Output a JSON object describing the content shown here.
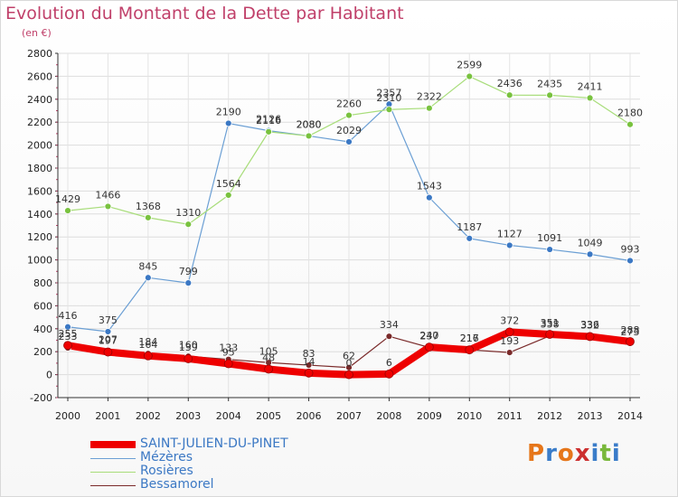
{
  "header": {
    "title": "Evolution du Montant de la Dette par Habitant",
    "unit": "(en €)"
  },
  "logo": {
    "text": "Proxiti",
    "chars": [
      "P",
      "r",
      "o",
      "x",
      "i",
      "t",
      "i"
    ],
    "colors": [
      "#e6761a",
      "#3a7cc9",
      "#e6761a",
      "#cc2f2f",
      "#3a7cc9",
      "#79b83b",
      "#3a7cc9"
    ]
  },
  "chart_data": {
    "type": "line",
    "x": [
      "2000",
      "2001",
      "2002",
      "2003",
      "2004",
      "2005",
      "2006",
      "2007",
      "2008",
      "2009",
      "2010",
      "2011",
      "2012",
      "2013",
      "2014"
    ],
    "ylim": [
      -200,
      2800
    ],
    "yticks": [
      -200,
      0,
      200,
      400,
      600,
      800,
      1000,
      1200,
      1400,
      1600,
      1800,
      2000,
      2200,
      2400,
      2600,
      2800
    ],
    "grid": true,
    "legend_position": "bottom-left",
    "series": [
      {
        "name": "Mézères",
        "color": "#6b9fd4",
        "marker": "#3b78c4",
        "width": 1.2,
        "values": [
          416,
          375,
          845,
          799,
          2190,
          2126,
          2080,
          2029,
          2357,
          1543,
          1187,
          1127,
          1091,
          1049,
          993
        ]
      },
      {
        "name": "Rosières",
        "color": "#a8dd7a",
        "marker": "#79c23f",
        "width": 1.2,
        "values": [
          1429,
          1466,
          1368,
          1310,
          1564,
          2116,
          2080,
          2260,
          2310,
          2322,
          2599,
          2436,
          2435,
          2411,
          2180
        ]
      },
      {
        "name": "Bessamorel",
        "color": "#7a2a2a",
        "marker": "#7a2a2a",
        "width": 1.2,
        "values": [
          233,
          207,
          184,
          160,
          133,
          105,
          83,
          62,
          334,
          237,
          217,
          193,
          338,
          336,
          273
        ]
      },
      {
        "name": "SAINT-JULIEN-DU-PINET",
        "color": "#ee0000",
        "marker": "#ee0000",
        "width": 8,
        "values": [
          255,
          197,
          164,
          139,
          95,
          48,
          14,
          0,
          6,
          240,
          216,
          372,
          351,
          332,
          288
        ]
      }
    ]
  }
}
